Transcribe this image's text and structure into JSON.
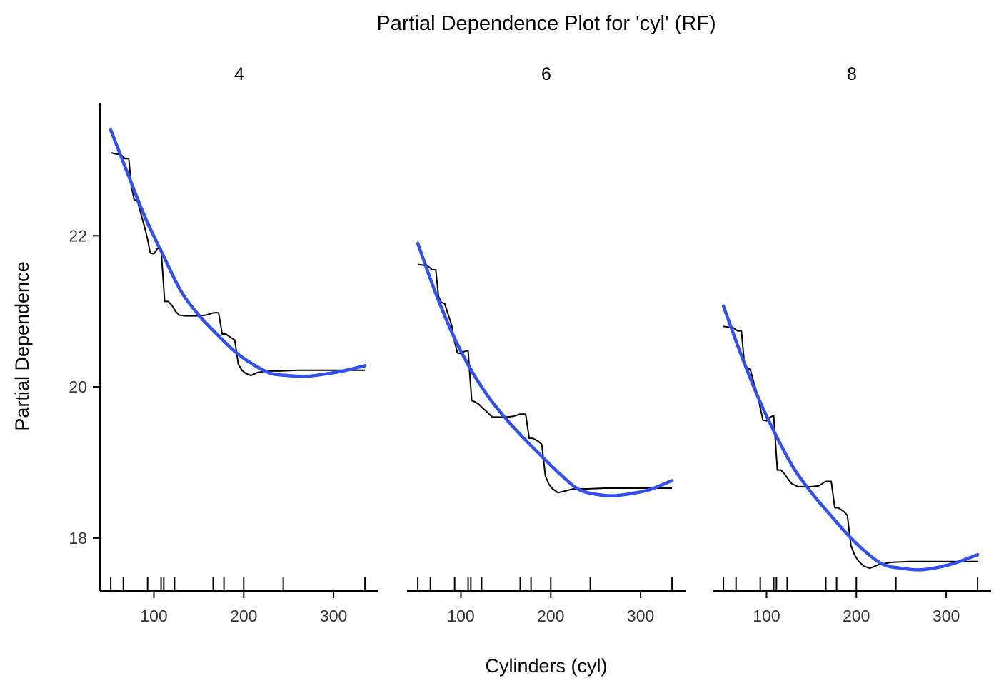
{
  "chart_data": {
    "type": "line",
    "title": "Partial Dependence Plot for 'cyl' (RF)",
    "xlabel": "Cylinders (cyl)",
    "ylabel": "Partial Dependence",
    "xlim": [
      40,
      350
    ],
    "ylim": [
      17.3,
      23.75
    ],
    "x_ticks": [
      100,
      200,
      300
    ],
    "y_ticks": [
      18,
      20,
      22
    ],
    "rug_x": [
      52,
      66,
      93,
      108,
      111,
      123,
      166,
      178,
      200,
      244,
      335
    ],
    "panels": [
      {
        "strip": "4",
        "pd_line": {
          "x": [
            52,
            58,
            63,
            68,
            72,
            75,
            78,
            82,
            86,
            90,
            93,
            96,
            100,
            104,
            108,
            112,
            116,
            120,
            124,
            128,
            135,
            142,
            150,
            158,
            166,
            172,
            176,
            180,
            186,
            190,
            194,
            198,
            202,
            208,
            215,
            225,
            240,
            260,
            280,
            300,
            320,
            335
          ],
          "y": [
            23.1,
            23.08,
            23.08,
            23.02,
            23.02,
            22.65,
            22.48,
            22.45,
            22.27,
            22.1,
            21.95,
            21.77,
            21.76,
            21.83,
            21.83,
            21.13,
            21.13,
            21.08,
            21.0,
            20.95,
            20.94,
            20.94,
            20.94,
            20.95,
            20.98,
            20.98,
            20.7,
            20.7,
            20.65,
            20.62,
            20.3,
            20.22,
            20.18,
            20.15,
            20.19,
            20.21,
            20.21,
            20.22,
            20.22,
            20.22,
            20.22,
            20.22
          ]
        },
        "smooth_line": {
          "x": [
            52,
            70,
            90,
            110,
            130,
            150,
            170,
            190,
            210,
            230,
            250,
            270,
            290,
            310,
            335
          ],
          "y": [
            23.4,
            22.85,
            22.25,
            21.75,
            21.27,
            20.95,
            20.7,
            20.47,
            20.3,
            20.18,
            20.15,
            20.14,
            20.17,
            20.21,
            20.28
          ]
        }
      },
      {
        "strip": "6",
        "pd_line": {
          "x": [
            52,
            58,
            63,
            68,
            72,
            75,
            78,
            82,
            86,
            90,
            93,
            96,
            100,
            104,
            108,
            112,
            116,
            120,
            124,
            128,
            135,
            142,
            150,
            158,
            166,
            172,
            176,
            180,
            186,
            190,
            194,
            198,
            202,
            208,
            215,
            225,
            240,
            260,
            280,
            300,
            320,
            335
          ],
          "y": [
            21.62,
            21.61,
            21.6,
            21.55,
            21.55,
            21.2,
            21.12,
            21.1,
            20.95,
            20.8,
            20.6,
            20.45,
            20.44,
            20.47,
            20.48,
            19.82,
            19.8,
            19.77,
            19.72,
            19.68,
            19.6,
            19.6,
            19.6,
            19.61,
            19.64,
            19.64,
            19.32,
            19.32,
            19.28,
            19.24,
            18.82,
            18.71,
            18.65,
            18.6,
            18.62,
            18.65,
            18.65,
            18.66,
            18.66,
            18.66,
            18.66,
            18.66
          ]
        },
        "smooth_line": {
          "x": [
            52,
            70,
            90,
            110,
            130,
            150,
            170,
            190,
            210,
            230,
            250,
            270,
            290,
            310,
            335
          ],
          "y": [
            21.9,
            21.3,
            20.72,
            20.25,
            19.88,
            19.58,
            19.32,
            19.08,
            18.85,
            18.65,
            18.58,
            18.56,
            18.59,
            18.64,
            18.76
          ]
        }
      },
      {
        "strip": "8",
        "pd_line": {
          "x": [
            52,
            58,
            63,
            68,
            72,
            75,
            78,
            82,
            86,
            90,
            93,
            96,
            100,
            104,
            108,
            112,
            116,
            120,
            124,
            128,
            135,
            142,
            150,
            158,
            166,
            172,
            176,
            180,
            186,
            190,
            194,
            198,
            202,
            208,
            215,
            225,
            240,
            260,
            280,
            300,
            320,
            335
          ],
          "y": [
            20.8,
            20.79,
            20.78,
            20.74,
            20.74,
            20.35,
            20.25,
            20.23,
            20.05,
            19.9,
            19.72,
            19.56,
            19.55,
            19.6,
            19.62,
            18.9,
            18.9,
            18.85,
            18.78,
            18.72,
            18.68,
            18.68,
            18.68,
            18.69,
            18.75,
            18.75,
            18.4,
            18.4,
            18.35,
            18.3,
            17.9,
            17.78,
            17.7,
            17.63,
            17.6,
            17.65,
            17.68,
            17.69,
            17.69,
            17.69,
            17.69,
            17.69
          ]
        },
        "smooth_line": {
          "x": [
            52,
            70,
            90,
            110,
            130,
            150,
            170,
            190,
            210,
            230,
            250,
            270,
            290,
            310,
            335
          ],
          "y": [
            21.07,
            20.48,
            19.88,
            19.37,
            18.93,
            18.6,
            18.32,
            18.05,
            17.82,
            17.65,
            17.6,
            17.58,
            17.61,
            17.67,
            17.78
          ]
        }
      }
    ],
    "colors": {
      "pd_line": "#000000",
      "smooth_line": "#3050f0",
      "axis": "#000000",
      "tick_label": "#333333"
    }
  }
}
